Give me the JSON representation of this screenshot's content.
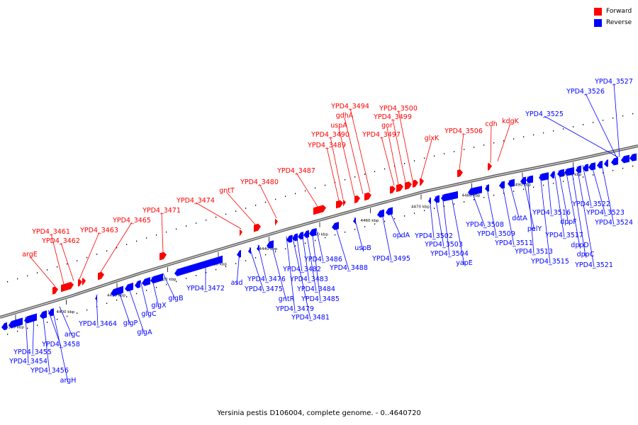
{
  "colors": {
    "forward": "#ff0000",
    "reverse": "#0000ff",
    "backbone": "#888888",
    "tick": "#000000"
  },
  "legend": [
    {
      "label": "Forward",
      "color": "#ff0000"
    },
    {
      "label": "Reverse",
      "color": "#0000ff"
    }
  ],
  "caption": "Yersinia pestis D106004, complete genome. - 0..4640720",
  "axis": {
    "unit": "kbp",
    "ticks": [
      4390,
      4400,
      4410,
      4420,
      4430,
      4440,
      4450,
      4460,
      4470,
      4480,
      4490,
      4500
    ]
  },
  "forward_labels": [
    "argE",
    "YPD4_3461",
    "YPD4_3462",
    "YPD4_3463",
    "YPD4_3465",
    "YPD4_3471",
    "YPD4_3474",
    "gntT",
    "YPD4_3480",
    "YPD4_3487",
    "YPD4_3489",
    "YPD4_3490",
    "uspA",
    "gdhA",
    "YPD4_3494",
    "YPD4_3497",
    "gor",
    "YPD4_3499",
    "YPD4_3500",
    "glxK",
    "YPD4_3506",
    "cdh",
    "kdgK"
  ],
  "reverse_labels": [
    "YPD4_3454",
    "YPD4_3455",
    "YPD4_3456",
    "argH",
    "YPD4_3458",
    "argC",
    "YPD4_3464",
    "glgP",
    "glgA",
    "glgC",
    "glgX",
    "glgB",
    "YPD4_3472",
    "asd",
    "YPD4_3475",
    "YPD4_3476",
    "gntR",
    "YPD4_3479",
    "YPD4_3481",
    "YPD4_3482",
    "YPD4_3483",
    "YPD4_3484",
    "YPD4_3485",
    "YPD4_3486",
    "YPD4_3488",
    "uspB",
    "YPD4_3495",
    "opdA",
    "YPD4_3502",
    "YPD4_3503",
    "YPD4_3504",
    "yapE",
    "YPD4_3508",
    "YPD4_3509",
    "YPD4_3511",
    "dctA",
    "pelY",
    "YPD4_3513",
    "YPD4_3515",
    "YPD4_3516",
    "YPD4_3517",
    "dppF",
    "dppD",
    "dppC",
    "YPD4_3521",
    "YPD4_3522",
    "YPD4_3523",
    "YPD4_3524",
    "YPD4_3525",
    "YPD4_3526",
    "YPD4_3527"
  ]
}
